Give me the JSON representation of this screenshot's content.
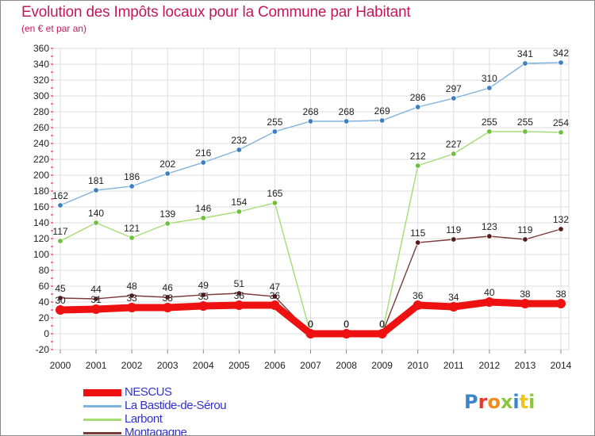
{
  "header": {
    "title": "Evolution des Impôts locaux pour la Commune par Habitant",
    "subtitle": "(en € et par an)"
  },
  "logo": {
    "text": "Proxiti"
  },
  "colors": {
    "title": "#c2185b",
    "legend_text": "#3333cc",
    "grid": "#dddddd",
    "axis_tick": "#c2185b"
  },
  "chart_data": {
    "type": "line",
    "title": "Evolution des Impôts locaux pour la Commune par Habitant",
    "subtitle": "(en € et par an)",
    "xlabel": "",
    "ylabel": "",
    "categories": [
      "2000",
      "2001",
      "2002",
      "2003",
      "2004",
      "2005",
      "2006",
      "2007",
      "2008",
      "2009",
      "2010",
      "2011",
      "2012",
      "2013",
      "2014"
    ],
    "y_ticks": [
      -20,
      0,
      20,
      40,
      60,
      80,
      100,
      120,
      140,
      160,
      180,
      200,
      220,
      240,
      260,
      280,
      300,
      320,
      340,
      360
    ],
    "ylim": [
      -20,
      360
    ],
    "grid": true,
    "legend_position": "bottom-left",
    "series": [
      {
        "name": "NESCUS",
        "color": "#ee1111",
        "bold": true,
        "values": [
          30,
          31,
          33,
          33,
          35,
          36,
          36,
          0,
          0,
          0,
          36,
          34,
          40,
          38,
          38
        ]
      },
      {
        "name": "La Bastide-de-Sérou",
        "color": "#7fb2dd",
        "marker": "#3d7fc1",
        "values": [
          162,
          181,
          186,
          202,
          216,
          232,
          255,
          268,
          268,
          269,
          286,
          297,
          310,
          341,
          342
        ]
      },
      {
        "name": "Larbont",
        "color": "#a5dc73",
        "marker": "#6cc03c",
        "values": [
          117,
          140,
          121,
          139,
          146,
          154,
          165,
          0,
          0,
          0,
          212,
          227,
          255,
          255,
          254
        ]
      },
      {
        "name": "Montagagne",
        "color": "#7a3b3b",
        "marker": "#5a1a1a",
        "values": [
          45,
          44,
          48,
          46,
          49,
          51,
          47,
          0,
          0,
          0,
          115,
          119,
          123,
          119,
          132
        ]
      }
    ],
    "data_labels": [
      {
        "series": "La Bastide-de-Sérou",
        "values": [
          "162",
          "181",
          "186",
          "202",
          "216",
          "232",
          "255",
          "268",
          "268",
          "269",
          "286",
          "297",
          "310",
          "341",
          "342"
        ]
      },
      {
        "series": "Larbont",
        "values": [
          "117",
          "140",
          "121",
          "139",
          "146",
          "154",
          "165",
          "0",
          "0",
          "0",
          "212",
          "227",
          "255",
          "255",
          "254"
        ]
      },
      {
        "series": "Montagagne",
        "values": [
          "45",
          "44",
          "48",
          "46",
          "49",
          "51",
          "47",
          "0",
          "0",
          "0",
          "115",
          "119",
          "123",
          "119",
          "132"
        ]
      },
      {
        "series": "NESCUS",
        "values": [
          "30",
          "31",
          "33",
          "33",
          "35",
          "36",
          "36",
          "0",
          "0",
          "0",
          "36",
          "34",
          "40",
          "38",
          "38"
        ]
      }
    ]
  }
}
